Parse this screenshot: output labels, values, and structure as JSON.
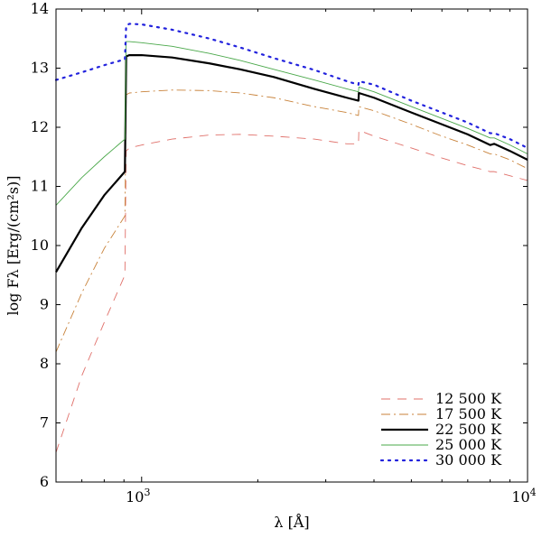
{
  "chart_data": {
    "type": "line",
    "title": "",
    "xlabel": "λ [Å]",
    "ylabel": "log Fλ [Erg/(cm²s)]",
    "xscale": "log",
    "xlim": [
      600,
      10000
    ],
    "ylim": [
      6,
      14
    ],
    "x_ticks": [
      {
        "value": 1000,
        "base": "10",
        "exp": "3"
      },
      {
        "value": 10000,
        "base": "10",
        "exp": "4"
      }
    ],
    "y_ticks": [
      6,
      7,
      8,
      9,
      10,
      11,
      12,
      13,
      14
    ],
    "legend_position": "lower-right",
    "series": [
      {
        "name": "12 500 K",
        "color": "#e0706a",
        "dash": "10,8",
        "width": 0.9,
        "x": [
          600,
          700,
          800,
          905,
          912,
          930,
          1000,
          1200,
          1500,
          1800,
          2200,
          2800,
          3400,
          3647,
          3655,
          4000,
          5000,
          6000,
          7000,
          8000,
          8200,
          9000,
          10000
        ],
        "y": [
          6.5,
          7.8,
          8.7,
          9.5,
          11.6,
          11.65,
          11.7,
          11.8,
          11.87,
          11.88,
          11.85,
          11.8,
          11.72,
          11.72,
          11.95,
          11.85,
          11.65,
          11.48,
          11.35,
          11.25,
          11.25,
          11.18,
          11.1
        ]
      },
      {
        "name": "17 500 K",
        "color": "#c8823a",
        "dash": "10,4,2,4",
        "width": 0.9,
        "x": [
          600,
          700,
          800,
          905,
          912,
          930,
          1000,
          1200,
          1500,
          1800,
          2200,
          2800,
          3400,
          3647,
          3655,
          4000,
          5000,
          6000,
          7000,
          8000,
          8200,
          9000,
          10000
        ],
        "y": [
          8.2,
          9.2,
          9.95,
          10.5,
          12.55,
          12.58,
          12.6,
          12.63,
          12.62,
          12.58,
          12.5,
          12.35,
          12.25,
          12.2,
          12.35,
          12.28,
          12.05,
          11.85,
          11.7,
          11.55,
          11.55,
          11.45,
          11.3
        ]
      },
      {
        "name": "22 500 K",
        "color": "#000000",
        "dash": "",
        "width": 2.2,
        "x": [
          600,
          700,
          800,
          905,
          912,
          930,
          1000,
          1200,
          1500,
          1800,
          2200,
          2800,
          3400,
          3647,
          3655,
          4000,
          5000,
          6000,
          7000,
          8000,
          8200,
          9000,
          10000
        ],
        "y": [
          9.55,
          10.3,
          10.85,
          11.25,
          13.2,
          13.22,
          13.22,
          13.18,
          13.08,
          12.98,
          12.85,
          12.65,
          12.5,
          12.45,
          12.58,
          12.5,
          12.25,
          12.05,
          11.88,
          11.7,
          11.72,
          11.6,
          11.45
        ]
      },
      {
        "name": "25 000 K",
        "color": "#4aa84a",
        "dash": "",
        "width": 0.9,
        "x": [
          600,
          700,
          800,
          905,
          912,
          930,
          1000,
          1200,
          1500,
          1800,
          2200,
          2800,
          3400,
          3647,
          3655,
          4000,
          5000,
          6000,
          7000,
          8000,
          8200,
          9000,
          10000
        ],
        "y": [
          10.68,
          11.15,
          11.5,
          11.8,
          13.45,
          13.45,
          13.43,
          13.37,
          13.25,
          13.13,
          12.98,
          12.8,
          12.65,
          12.6,
          12.68,
          12.6,
          12.35,
          12.15,
          11.98,
          11.82,
          11.82,
          11.7,
          11.55
        ]
      },
      {
        "name": "30 000 K",
        "color": "#2222dd",
        "dash": "2,6",
        "width": 2.2,
        "x": [
          600,
          700,
          800,
          905,
          912,
          930,
          1000,
          1200,
          1500,
          1800,
          2200,
          2800,
          3400,
          3647,
          3655,
          4000,
          5000,
          6000,
          7000,
          8000,
          8200,
          9000,
          10000
        ],
        "y": [
          12.8,
          12.93,
          13.05,
          13.15,
          13.72,
          13.75,
          13.74,
          13.65,
          13.5,
          13.35,
          13.17,
          12.97,
          12.78,
          12.72,
          12.78,
          12.72,
          12.45,
          12.25,
          12.08,
          11.9,
          11.9,
          11.8,
          11.65
        ]
      }
    ]
  }
}
